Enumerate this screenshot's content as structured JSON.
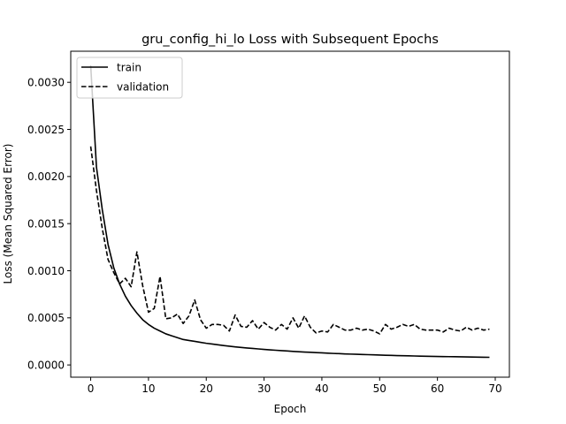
{
  "chart_data": {
    "type": "line",
    "title": "gru_config_hi_lo Loss with Subsequent Epochs",
    "xlabel": "Epoch",
    "ylabel": "Loss (Mean Squared Error)",
    "xlim": [
      -3.45,
      72.45
    ],
    "ylim": [
      -0.00013,
      0.00333
    ],
    "xticks": [
      0,
      10,
      20,
      30,
      40,
      50,
      60,
      70
    ],
    "xtick_labels": [
      "0",
      "10",
      "20",
      "30",
      "40",
      "50",
      "60",
      "70"
    ],
    "yticks": [
      0.0,
      0.0005,
      0.001,
      0.0015,
      0.002,
      0.0025,
      0.003
    ],
    "ytick_labels": [
      "0.0000",
      "0.0005",
      "0.0010",
      "0.0015",
      "0.0020",
      "0.0025",
      "0.0030"
    ],
    "grid": false,
    "legend_position": "top-left",
    "x": [
      0,
      1,
      2,
      3,
      4,
      5,
      6,
      7,
      8,
      9,
      10,
      11,
      12,
      13,
      14,
      15,
      16,
      17,
      18,
      19,
      20,
      21,
      22,
      23,
      24,
      25,
      26,
      27,
      28,
      29,
      30,
      31,
      32,
      33,
      34,
      35,
      36,
      37,
      38,
      39,
      40,
      41,
      42,
      43,
      44,
      45,
      46,
      47,
      48,
      49,
      50,
      51,
      52,
      53,
      54,
      55,
      56,
      57,
      58,
      59,
      60,
      61,
      62,
      63,
      64,
      65,
      66,
      67,
      68,
      69
    ],
    "series": [
      {
        "name": "train",
        "style": "solid",
        "color": "#000000",
        "values": [
          0.00318,
          0.0021,
          0.00165,
          0.00128,
          0.00103,
          0.00086,
          0.00073,
          0.00063,
          0.00055,
          0.00048,
          0.00043,
          0.00039,
          0.00036,
          0.00033,
          0.00031,
          0.00029,
          0.00027,
          0.00026,
          0.00025,
          0.00024,
          0.00023,
          0.000222,
          0.000214,
          0.000206,
          0.000199,
          0.000192,
          0.000186,
          0.00018,
          0.000175,
          0.00017,
          0.000165,
          0.00016,
          0.000156,
          0.000152,
          0.000148,
          0.000144,
          0.00014,
          0.000137,
          0.000134,
          0.000131,
          0.000128,
          0.000125,
          0.000122,
          0.00012,
          0.000117,
          0.000115,
          0.000113,
          0.000111,
          0.000109,
          0.000107,
          0.000105,
          0.000103,
          0.000101,
          9.95e-05,
          9.8e-05,
          9.65e-05,
          9.5e-05,
          9.35e-05,
          9.2e-05,
          9.1e-05,
          9e-05,
          8.9e-05,
          8.8e-05,
          8.7e-05,
          8.6e-05,
          8.5e-05,
          8.4e-05,
          8.3e-05,
          8.2e-05,
          8.1e-05
        ]
      },
      {
        "name": "validation",
        "style": "dashed",
        "color": "#000000",
        "values": [
          0.00232,
          0.00185,
          0.00145,
          0.00112,
          0.00098,
          0.00086,
          0.00092,
          0.00083,
          0.0012,
          0.00084,
          0.00056,
          0.0006,
          0.00094,
          0.00049,
          0.0005,
          0.00054,
          0.00044,
          0.00052,
          0.00069,
          0.00048,
          0.00039,
          0.00043,
          0.00043,
          0.00042,
          0.00036,
          0.00053,
          0.00041,
          0.0004,
          0.00047,
          0.00038,
          0.00045,
          0.0004,
          0.00037,
          0.00043,
          0.00038,
          0.0005,
          0.00039,
          0.00052,
          0.0004,
          0.00034,
          0.00036,
          0.00035,
          0.00043,
          0.0004,
          0.00037,
          0.00037,
          0.00039,
          0.00037,
          0.00038,
          0.00036,
          0.00033,
          0.00043,
          0.00038,
          0.0004,
          0.00043,
          0.00041,
          0.00043,
          0.00038,
          0.00037,
          0.00037,
          0.00037,
          0.00035,
          0.00039,
          0.00037,
          0.00036,
          0.0004,
          0.00037,
          0.00039,
          0.00037,
          0.00038
        ]
      }
    ]
  }
}
